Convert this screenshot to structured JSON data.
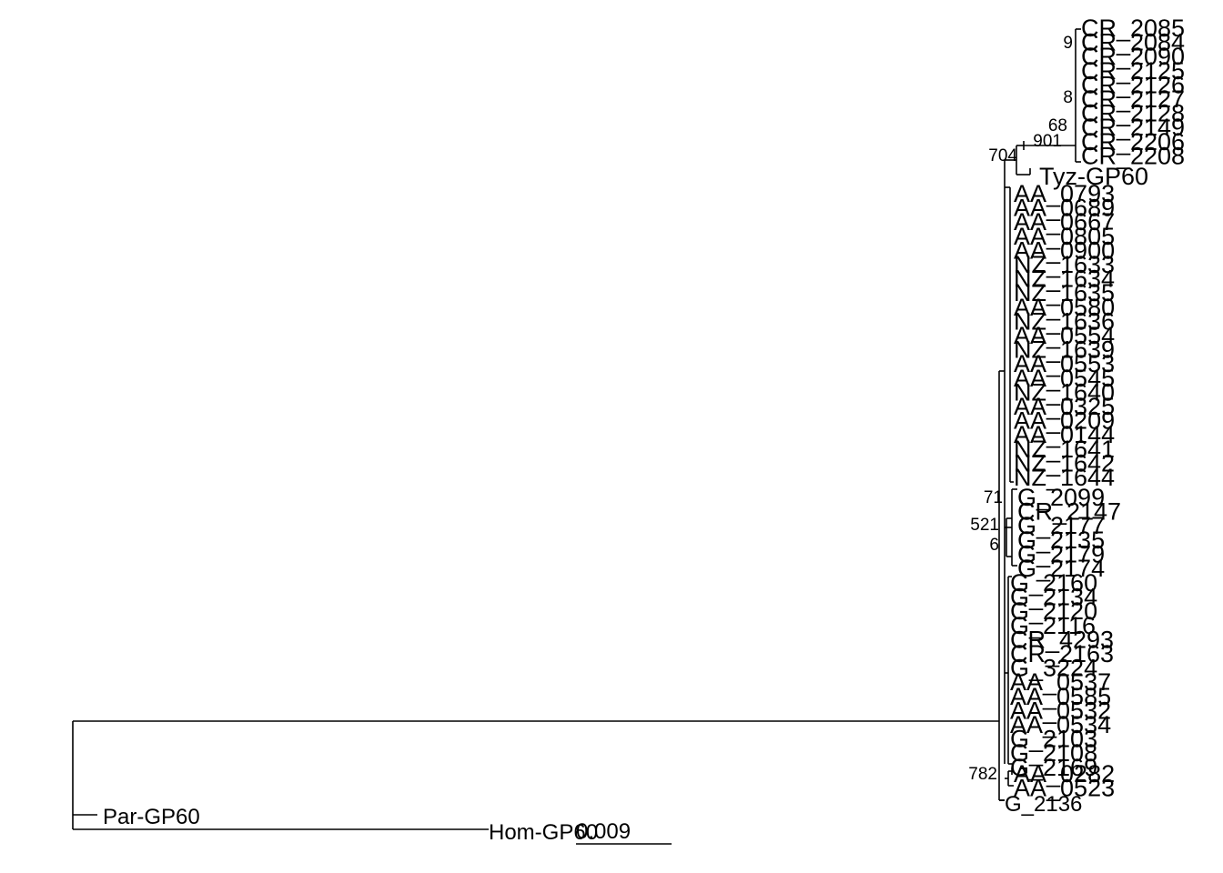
{
  "tree": {
    "taxa": {
      "cr": [
        "CR_2085",
        "CR_2084",
        "CR_2090",
        "CR_2125",
        "CR_2126",
        "CR_2127",
        "CR_2128",
        "CR_2149",
        "CR_2206",
        "CR_2208"
      ],
      "tyz": "Tyz-GP60",
      "group_a": [
        "AA_0793",
        "AA_0689",
        "AA_0667",
        "AA_0805",
        "AA_0900",
        "NZ_1633",
        "NZ_1634",
        "NZ_1635",
        "AA_0580",
        "NZ_1636",
        "AA_0554",
        "NZ_1639",
        "AA_0553",
        "AA_0545",
        "NZ_1640",
        "AA_0325",
        "AA_0209",
        "AA_0144",
        "NZ_1641",
        "NZ_1642",
        "NZ_1644"
      ],
      "group_b": [
        "G_2099",
        "CR_2147",
        "G_2177",
        "G_2135",
        "G_2179",
        "G_2174"
      ],
      "group_c": [
        "G_2160",
        "G_2134",
        "G_2120",
        "G_2116",
        "CR_4293",
        "CR_2163",
        "G_3224",
        "AA_0537",
        "AA_0585",
        "AA_0532",
        "AA_0534",
        "G_2103",
        "G_2108",
        "G_2169"
      ],
      "group_d": [
        "AA_0282",
        "AA_0523"
      ],
      "g2136": "G_2136",
      "par": "Par-GP60",
      "hom": "Hom-GP60"
    },
    "support": {
      "s9": "9",
      "s8": "8",
      "s68": "68",
      "s901": "901",
      "s704": "704",
      "s71": "71",
      "s521": "521",
      "s6": "6",
      "s782": "782"
    },
    "scale_bar": {
      "value": 0.009,
      "label": "0.009"
    }
  }
}
